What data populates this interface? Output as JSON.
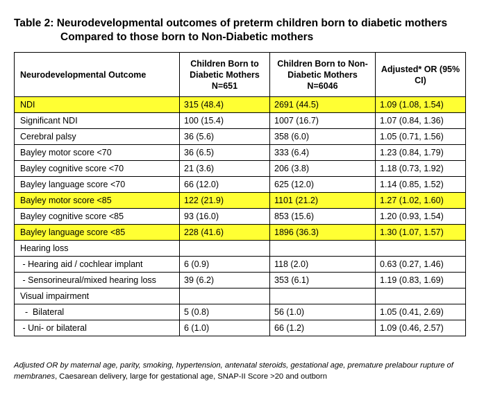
{
  "title": {
    "line1": "Table 2: Neurodevelopmental outcomes of preterm children born to diabetic mothers",
    "line2": "Compared to those born to Non-Diabetic mothers"
  },
  "table": {
    "headers": [
      "Neurodevelopmental Outcome",
      "Children Born to Diabetic Mothers N=651",
      "Children Born to Non-Diabetic Mothers N=6046",
      "Adjusted* OR (95% CI)"
    ],
    "rows": [
      {
        "outcome": "NDI",
        "diabetic": "315 (48.4)",
        "non_diabetic": "2691 (44.5)",
        "or": "1.09 (1.08, 1.54)",
        "highlight": true
      },
      {
        "outcome": "Significant NDI",
        "diabetic": "100 (15.4)",
        "non_diabetic": "1007 (16.7)",
        "or": "1.07 (0.84, 1.36)",
        "highlight": false
      },
      {
        "outcome": "Cerebral palsy",
        "diabetic": "36 (5.6)",
        "non_diabetic": "358 (6.0)",
        "or": "1.05 (0.71, 1.56)",
        "highlight": false
      },
      {
        "outcome": "Bayley motor score <70",
        "diabetic": "36 (6.5)",
        "non_diabetic": "333 (6.4)",
        "or": "1.23 (0.84, 1.79)",
        "highlight": false
      },
      {
        "outcome": "Bayley cognitive score <70",
        "diabetic": "21 (3.6)",
        "non_diabetic": "206 (3.8)",
        "or": "1.18 (0.73, 1.92)",
        "highlight": false
      },
      {
        "outcome": "Bayley language score <70",
        "diabetic": "66 (12.0)",
        "non_diabetic": "625 (12.0)",
        "or": "1.14 (0.85, 1.52)",
        "highlight": false
      },
      {
        "outcome": "Bayley motor score <85",
        "diabetic": "122 (21.9)",
        "non_diabetic": "1101 (21.2)",
        "or": "1.27 (1.02, 1.60)",
        "highlight": true
      },
      {
        "outcome": "Bayley cognitive score <85",
        "diabetic": "93 (16.0)",
        "non_diabetic": "853 (15.6)",
        "or": "1.20 (0.93, 1.54)",
        "highlight": false
      },
      {
        "outcome": "Bayley language score <85",
        "diabetic": "228 (41.6)",
        "non_diabetic": "1896 (36.3)",
        "or": "1.30 (1.07, 1.57)",
        "highlight": true
      },
      {
        "outcome": "Hearing loss",
        "diabetic": "",
        "non_diabetic": "",
        "or": "",
        "highlight": false
      },
      {
        "outcome": " - Hearing aid / cochlear implant",
        "diabetic": "6 (0.9)",
        "non_diabetic": "118 (2.0)",
        "or": "0.63 (0.27, 1.46)",
        "highlight": false
      },
      {
        "outcome": " - Sensorineural/mixed hearing loss",
        "diabetic": "39 (6.2)",
        "non_diabetic": "353 (6.1)",
        "or": "1.19 (0.83, 1.69)",
        "highlight": false
      },
      {
        "outcome": "Visual impairment",
        "diabetic": "",
        "non_diabetic": "",
        "or": "",
        "highlight": false
      },
      {
        "outcome": "  -  Bilateral",
        "diabetic": "5 (0.8)",
        "non_diabetic": "56 (1.0)",
        "or": "1.05 (0.41, 2.69)",
        "highlight": false
      },
      {
        "outcome": " - Uni- or bilateral",
        "diabetic": "6 (1.0)",
        "non_diabetic": "66 (1.2)",
        "or": "1.09 (0.46, 2.57)",
        "highlight": false
      }
    ]
  },
  "footnote": {
    "italic_part": "Adjusted OR by maternal age, parity, smoking, hypertension, antenatal steroids, gestational age, premature prelabour rupture of membranes",
    "plain_part": ", Caesarean delivery, large for gestational age, SNAP-II Score >20 and outborn"
  },
  "colors": {
    "highlight": "#ffff33",
    "border": "#000000"
  }
}
